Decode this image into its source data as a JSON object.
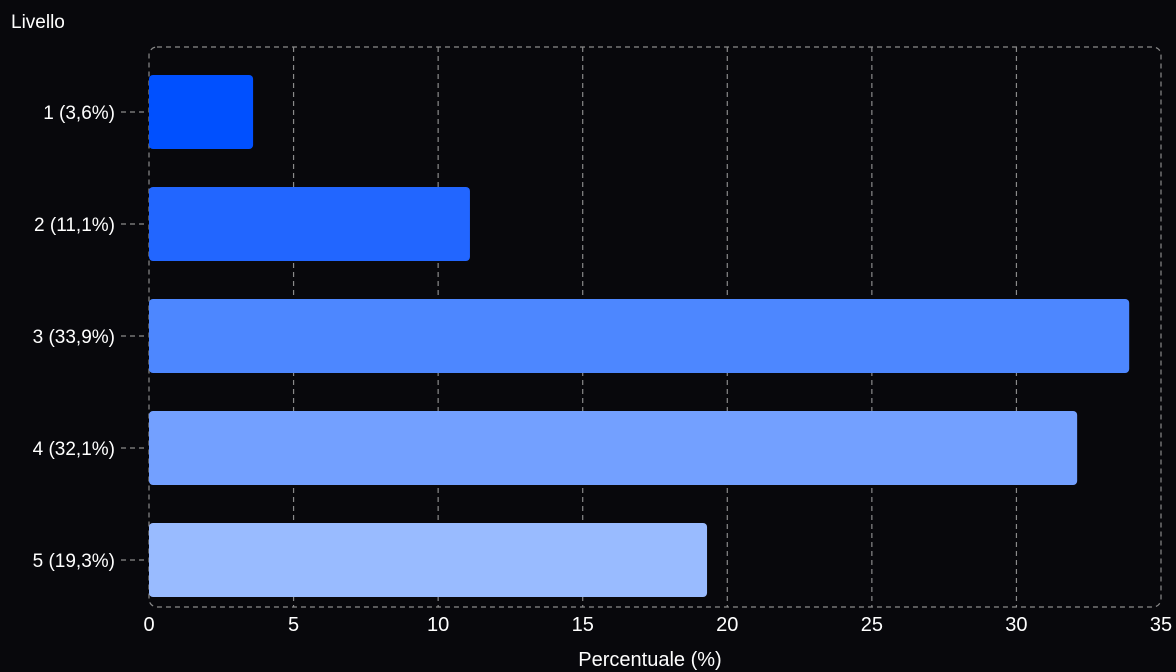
{
  "chart_data": {
    "type": "bar",
    "orientation": "horizontal",
    "ylabel": "Livello",
    "xlabel": "Percentuale (%)",
    "categories": [
      "1 (3,6%)",
      "2 (11,1%)",
      "3 (33,9%)",
      "4 (32,1%)",
      "5 (19,3%)"
    ],
    "values": [
      3.6,
      11.1,
      33.9,
      32.1,
      19.3
    ],
    "colors": [
      "#0050ff",
      "#2266ff",
      "#4d87ff",
      "#73a0ff",
      "#99bbff"
    ],
    "xlim": [
      0,
      35
    ],
    "xticks": [
      "0",
      "5",
      "10",
      "15",
      "20",
      "25",
      "30",
      "35"
    ],
    "grid": true,
    "background": "#08080c",
    "grid_color": "#8a8a8a"
  }
}
